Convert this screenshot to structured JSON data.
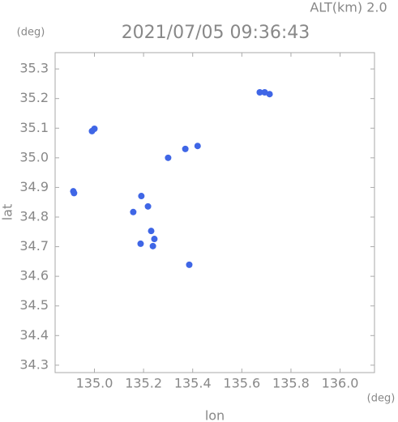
{
  "chart_data": {
    "type": "scatter",
    "title": "2021/07/05 09:36:43",
    "subtitle": "ALT(km) 2.0",
    "y_unit": "(deg)",
    "x_unit": "(deg)",
    "x_label": "lon",
    "y_label": "lat",
    "color": "#3f66e6",
    "x": [
      135.673,
      135.693,
      135.713,
      135.0,
      134.99,
      134.914,
      134.917,
      135.191,
      135.218,
      135.231,
      135.244,
      135.238,
      135.3,
      135.37,
      135.42,
      135.386,
      135.158,
      135.188
    ],
    "values": [
      35.221,
      35.221,
      35.215,
      35.098,
      35.09,
      34.887,
      34.881,
      34.871,
      34.836,
      34.753,
      34.726,
      34.702,
      35.0,
      35.03,
      35.04,
      34.639,
      34.817,
      34.71
    ],
    "xlim": [
      134.84,
      136.14
    ],
    "ylim": [
      34.275,
      35.355
    ],
    "xticks": [
      {
        "value": 135.0,
        "label": "135.0"
      },
      135.2,
      135.4,
      135.6,
      135.8,
      {
        "value": 136.0,
        "label": "136.0"
      }
    ],
    "yticks": [
      34.3,
      34.4,
      34.5,
      34.6,
      34.7,
      34.8,
      34.9,
      {
        "value": 35.0,
        "label": "35.0"
      },
      35.1,
      35.2,
      35.3
    ]
  }
}
